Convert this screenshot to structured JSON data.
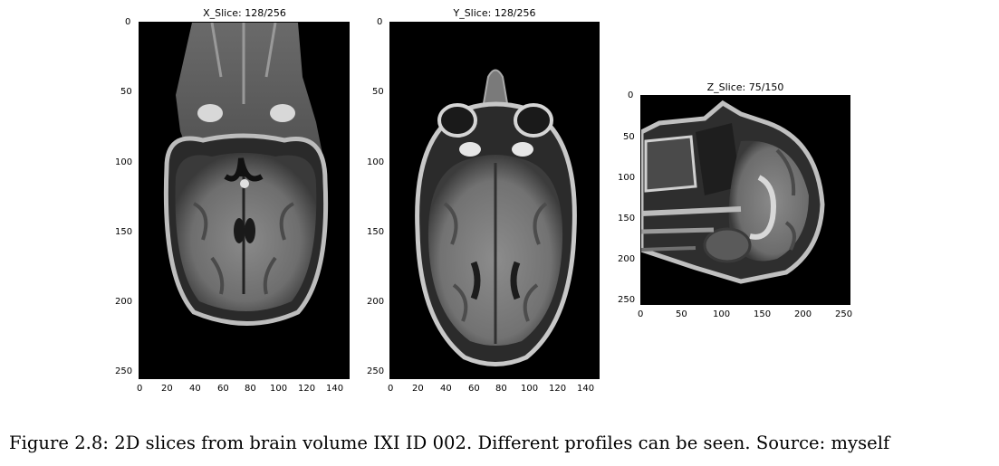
{
  "panels": [
    {
      "id": "x",
      "title": "X_Slice: 128/256",
      "x_ticks": [
        "0",
        "20",
        "40",
        "60",
        "80",
        "100",
        "120",
        "140"
      ],
      "y_ticks": [
        "0",
        "50",
        "100",
        "150",
        "200",
        "250"
      ],
      "image": "axial-brain-slice-lower"
    },
    {
      "id": "y",
      "title": "Y_Slice: 128/256",
      "x_ticks": [
        "0",
        "20",
        "40",
        "60",
        "80",
        "100",
        "120",
        "140"
      ],
      "y_ticks": [
        "0",
        "50",
        "100",
        "150",
        "200",
        "250"
      ],
      "image": "axial-brain-slice-eyes"
    },
    {
      "id": "z",
      "title": "Z_Slice: 75/150",
      "x_ticks": [
        "0",
        "50",
        "100",
        "150",
        "200",
        "250"
      ],
      "y_ticks": [
        "0",
        "50",
        "100",
        "150",
        "200",
        "250"
      ],
      "image": "sagittal-brain-slice"
    }
  ],
  "caption": "Figure 2.8: 2D slices from brain volume IXI ID 002. Different profiles can be seen. Source: myself",
  "colors": {
    "background": "#ffffff",
    "image_background": "#000000"
  }
}
